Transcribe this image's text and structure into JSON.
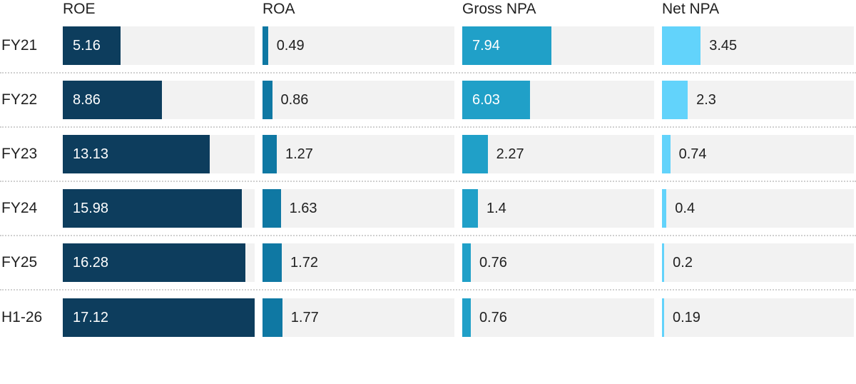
{
  "chart_data": {
    "type": "bar",
    "orientation": "horizontal",
    "title": "",
    "scale_max": 17.12,
    "xlim": [
      0,
      17.12
    ],
    "grid": false,
    "legend_position": "column headers on top",
    "layout": "4 side-by-side bar columns sharing one value scale; one row per fiscal period; dotted separators between rows; value labels inside bar (white) when bar is wide, right of bar (dark) when narrow",
    "categories": [
      "FY21",
      "FY22",
      "FY23",
      "FY24",
      "FY25",
      "H1-26"
    ],
    "series": [
      {
        "name": "ROE",
        "color": "#0d3d5d",
        "values": [
          5.16,
          8.86,
          13.13,
          15.98,
          16.28,
          17.12
        ]
      },
      {
        "name": "ROA",
        "color": "#0f78a3",
        "values": [
          0.49,
          0.86,
          1.27,
          1.63,
          1.72,
          1.77
        ]
      },
      {
        "name": "Gross NPA",
        "color": "#20a0c8",
        "values": [
          7.94,
          6.03,
          2.27,
          1.4,
          0.76,
          0.76
        ]
      },
      {
        "name": "Net NPA",
        "color": "#62d3fb",
        "values": [
          3.45,
          2.3,
          0.74,
          0.4,
          0.2,
          0.19
        ]
      }
    ],
    "colors": {
      "track": "#f2f2f2",
      "text": "#212121",
      "inside_label": "#ffffff",
      "separator": "#d0d0d0",
      "background": "#ffffff"
    }
  }
}
